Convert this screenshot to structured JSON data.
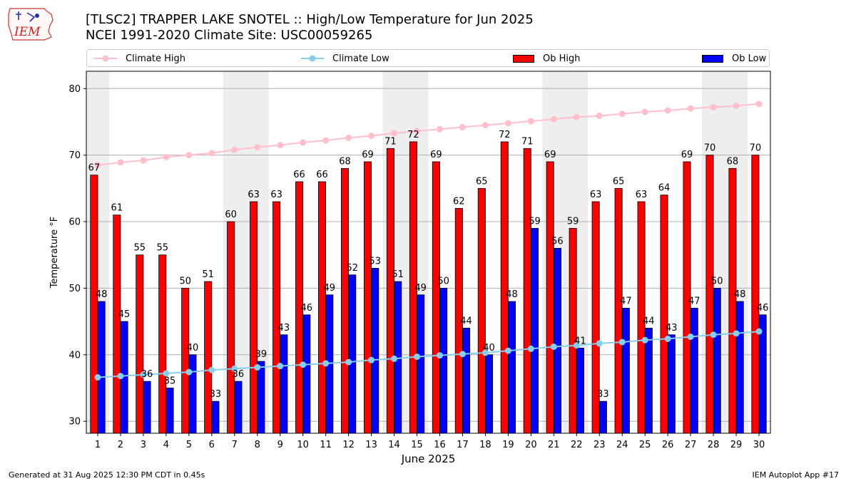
{
  "header": {
    "title_line1": "[TLSC2] TRAPPER LAKE SNOTEL :: High/Low Temperature for Jun 2025",
    "title_line2": "NCEI 1991-2020 Climate Site: USC00059265",
    "logo_text": "IEM"
  },
  "legend": {
    "climate_high": "Climate High",
    "climate_low": "Climate Low",
    "ob_high": "Ob High",
    "ob_low": "Ob Low"
  },
  "footer": {
    "generated": "Generated at 31 Aug 2025 12:30 PM CDT in 0.45s",
    "app": "IEM Autoplot App #17"
  },
  "colors": {
    "ob_high": "#ff0000",
    "ob_low": "#0000ff",
    "climate_high": "#ffc0cb",
    "climate_low": "#87ceeb",
    "weekend_shade": "#eeeeee",
    "grid": "#b0b0b0"
  },
  "chart_data": {
    "type": "bar",
    "title": "[TLSC2] TRAPPER LAKE SNOTEL :: High/Low Temperature for Jun 2025",
    "xlabel": "June 2025",
    "ylabel": "Temperature °F",
    "ylim": [
      28.2,
      82.6
    ],
    "yticks": [
      30,
      40,
      50,
      60,
      70,
      80
    ],
    "grid": "y",
    "legend_position": "top",
    "categories": [
      "1",
      "2",
      "3",
      "4",
      "5",
      "6",
      "7",
      "8",
      "9",
      "10",
      "11",
      "12",
      "13",
      "14",
      "15",
      "16",
      "17",
      "18",
      "19",
      "20",
      "21",
      "22",
      "23",
      "24",
      "25",
      "26",
      "27",
      "28",
      "29",
      "30"
    ],
    "shaded_days": [
      [
        1,
        1
      ],
      [
        7,
        8
      ],
      [
        14,
        15
      ],
      [
        21,
        22
      ],
      [
        28,
        29
      ]
    ],
    "series": [
      {
        "name": "Ob High",
        "kind": "bar",
        "values": [
          67,
          61,
          55,
          55,
          50,
          51,
          60,
          63,
          63,
          66,
          66,
          68,
          69,
          71,
          72,
          69,
          62,
          65,
          72,
          71,
          69,
          59,
          63,
          65,
          63,
          64,
          69,
          70,
          68,
          70
        ]
      },
      {
        "name": "Ob Low",
        "kind": "bar",
        "values": [
          48,
          45,
          36,
          35,
          40,
          33,
          36,
          39,
          43,
          46,
          49,
          52,
          53,
          51,
          49,
          50,
          44,
          40,
          48,
          59,
          56,
          41,
          33,
          47,
          44,
          43,
          47,
          50,
          48,
          46
        ]
      },
      {
        "name": "Climate High",
        "kind": "line",
        "values": [
          68.5,
          68.9,
          69.2,
          69.7,
          70.0,
          70.3,
          70.8,
          71.2,
          71.5,
          71.9,
          72.2,
          72.6,
          72.9,
          73.3,
          73.6,
          73.9,
          74.2,
          74.5,
          74.8,
          75.1,
          75.4,
          75.7,
          75.9,
          76.2,
          76.5,
          76.7,
          77.0,
          77.2,
          77.4,
          77.7
        ]
      },
      {
        "name": "Climate Low",
        "kind": "line",
        "values": [
          36.6,
          36.8,
          37.0,
          37.2,
          37.4,
          37.7,
          37.9,
          38.1,
          38.3,
          38.5,
          38.7,
          38.9,
          39.2,
          39.4,
          39.7,
          39.9,
          40.1,
          40.3,
          40.6,
          40.9,
          41.2,
          41.4,
          41.7,
          41.9,
          42.2,
          42.4,
          42.7,
          43.0,
          43.2,
          43.5
        ]
      }
    ]
  }
}
